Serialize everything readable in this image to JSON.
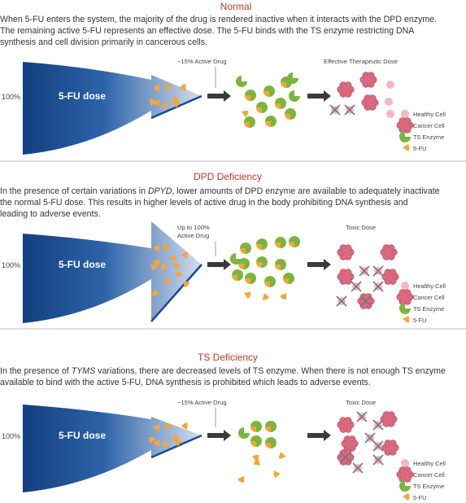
{
  "panels": [
    {
      "title": "Normal",
      "description": [
        "When 5-FU enters the system, the majority of the drug is rendered inactive when it interacts with the DPD enzyme.",
        "The remaining active 5-FU represents an effective dose. The 5-FU binds with the TS enzyme restricting DNA",
        "synthesis and cell division primarily in cancerous cells."
      ],
      "dose_percent": "100%",
      "arrow_label": "5-FU dose",
      "active_label": [
        "~15% Active Drug"
      ],
      "outcome_label": "Effective Therapeutic Dose",
      "legend": [
        "Healthy Cell",
        "Cancer Cell",
        "TS Enzyme",
        "5-FU"
      ]
    },
    {
      "title": "DPD Deficiency",
      "description": [
        {
          "before": "In the presence of certain variations in ",
          "emphasis": "DPYD",
          "after": ", lower amounts of DPD enzyme are available to adequately inactivate"
        },
        "the normal 5-FU dose. This results in higher levels of active drug in the body prohibiting DNA synthesis and",
        "leading to adverse events."
      ],
      "dose_percent": "100%",
      "arrow_label": "5-FU dose",
      "active_label": [
        "Up to 100%",
        "Active Drug"
      ],
      "outcome_label": "Toxic Dose",
      "legend": [
        "Healthy Cell",
        "Cancer Cell",
        "TS Enzyme",
        "5-FU"
      ]
    },
    {
      "title": "TS Deficiency",
      "description": [
        {
          "before": "In the presence of ",
          "emphasis": "TYMS",
          "after": " variations, there are decreased levels of TS enzyme. When there is not enough TS enzyme"
        },
        "available to bind with the active 5-FU, DNA synthesis is prohibited which leads to adverse events."
      ],
      "dose_percent": "100%",
      "arrow_label": "5-FU dose",
      "active_label": [
        "~15% Active Drug"
      ],
      "outcome_label": "Toxic Dose",
      "legend": [
        "Healthy Cell",
        "Cancer Cell",
        "TS Enzyme",
        "5-FU"
      ]
    }
  ]
}
